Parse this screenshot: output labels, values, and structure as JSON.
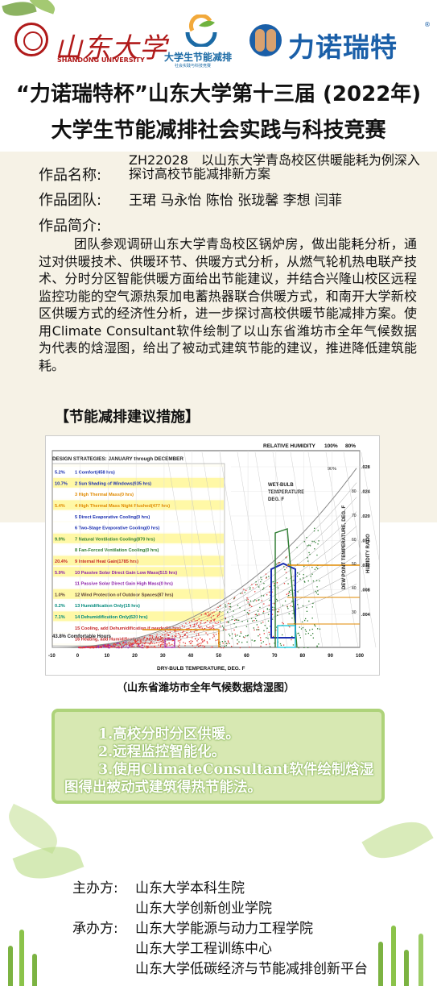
{
  "header": {
    "sdu_name_cn": "山东大学",
    "sdu_name_en": "SHANDONG UNIVERSITY",
    "eco_title": "大学生节能减排",
    "eco_subtitle": "社会实践与科技竞赛",
    "sponsor_name": "力诺瑞特",
    "sponsor_reg_mark": "®"
  },
  "title": {
    "line1": "“力诺瑞特杯”山东大学第十三届 (2022年)",
    "line2": "大学生节能减排社会实践与科技竞赛"
  },
  "project": {
    "name_label": "作品名称:",
    "name_value": "ZH22028　以山东大学青岛校区供暖能耗为例深入探讨高校节能减排新方案",
    "team_label": "作品团队:",
    "team_value": "王珺 马永怡 陈怡 张珑馨 李想 闫菲",
    "intro_label": "作品简介:",
    "intro_text": "团队参观调研山东大学青岛校区锅炉房，做出能耗分析，通过对供暖技术、供暖环节、供暖方式分析，从燃气轮机热电联产技术、分时分区智能供暖方面给出节能建议，并结合兴隆山校区远程监控功能的空气源热泵加电蓄热器联合供暖方式，和南开大学新校区供暖方式的经济性分析，进一步探讨高校供暖节能减排方案。使用Climate Consultant软件绘制了以山东省潍坊市全年气候数据为代表的焓湿图，给出了被动式建筑节能的建议，推进降低建筑能耗。",
    "measures_heading": "【节能减排建议措施】"
  },
  "chart": {
    "strategies_title": "DESIGN STRATEGIES:  JANUARY through DECEMBER",
    "rh_label": "RELATIVE HUMIDITY",
    "rh_100": "100%",
    "rh_80": "80%",
    "rh_90": "90%",
    "wet_bulb": [
      "WET-BULB",
      "TEMPERATURE",
      "DEG. F"
    ],
    "dew_label": "DEW POINT TEMPERATURE, DEG. F",
    "hr_label": "HUMIDITY RATIO",
    "x_axis_label": "DRY-BULB TEMPERATURE, DEG. F",
    "x_ticks": [
      "-10",
      "0",
      "10",
      "20",
      "30",
      "40",
      "50",
      "60",
      "70",
      "80",
      "90",
      "100"
    ],
    "right_ticks": [
      ".028",
      ".024",
      ".020",
      ".016",
      ".012",
      ".008",
      ".004"
    ],
    "dew_ticks": [
      "80",
      "70",
      "60",
      "50",
      "40",
      "30"
    ],
    "comfortable": "43.8%  Comfortable Hours",
    "strategies": [
      {
        "pct": "5.2%",
        "text": "1  Comfort(458 hrs)",
        "color": "#1a2fb0",
        "bg": "#ffffff"
      },
      {
        "pct": "10.7%",
        "text": "2  Sun Shading of Windows(935 hrs)",
        "color": "#1a2fb0",
        "bg": "#fff8a6"
      },
      {
        "pct": "",
        "text": "3  High Thermal Mass(0 hrs)",
        "color": "#e08a00",
        "bg": "#ffffff"
      },
      {
        "pct": "5.4%",
        "text": "4  High Thermal Mass Night Flushed(477 hrs)",
        "color": "#e08a00",
        "bg": "#fff8a6"
      },
      {
        "pct": "",
        "text": "5  Direct Evaporative Cooling(0 hrs)",
        "color": "#1a2fb0",
        "bg": "#ffffff"
      },
      {
        "pct": "",
        "text": "6  Two-Stage Evaporative Cooling(0 hrs)",
        "color": "#1a2fb0",
        "bg": "#ffffff"
      },
      {
        "pct": "9.9%",
        "text": "7  Natural Ventilation Cooling(870 hrs)",
        "color": "#2e7d32",
        "bg": "#fff8a6"
      },
      {
        "pct": "",
        "text": "8  Fan-Forced Ventilation Cooling(0 hrs)",
        "color": "#2e7d32",
        "bg": "#ffffff"
      },
      {
        "pct": "20.4%",
        "text": "9  Internal Heat Gain(1785 hrs)",
        "color": "#c62828",
        "bg": "#fff8a6"
      },
      {
        "pct": "5.9%",
        "text": "10 Passive Solar Direct Gain Low Mass(515 hrs)",
        "color": "#8e24aa",
        "bg": "#fff8a6"
      },
      {
        "pct": "",
        "text": "11 Passive Solar Direct Gain High Mass(0 hrs)",
        "color": "#8e24aa",
        "bg": "#ffffff"
      },
      {
        "pct": "1.0%",
        "text": "12 Wind Protection of Outdoor Spaces(87 hrs)",
        "color": "#5d4037",
        "bg": "#fff8a6"
      },
      {
        "pct": "0.2%",
        "text": "13 Humidification Only(15 hrs)",
        "color": "#00897b",
        "bg": "#ffffff"
      },
      {
        "pct": "7.1%",
        "text": "14 Dehumidification Only(620 hrs)",
        "color": "#00897b",
        "bg": "#fff8a6"
      },
      {
        "pct": "",
        "text": "15 Cooling, add Dehumidification if needed(0 hrs)",
        "color": "#c62828",
        "bg": "#ffffff"
      },
      {
        "pct": "",
        "text": "16 Heating, add Humidification if needed(0 hrs)",
        "color": "#c62828",
        "bg": "#ffffff"
      }
    ]
  },
  "caption": "（山东省潍坊市全年气候数据焓湿图）",
  "suggestions": {
    "item1": "1.高校分时分区供暖。",
    "item2": "2.远程监控智能化。",
    "item3": "3.使用ClimateConsultant软件绘制焓湿图得出被动式建筑得热节能法。"
  },
  "organizers": {
    "host_label": "主办方:",
    "host_1": "山东大学本科生院",
    "host_2": "山东大学创新创业学院",
    "co_label": "承办方:",
    "co_1": "山东大学能源与动力工程学院",
    "co_2": "山东大学工程训练中心",
    "co_3": "山东大学低碳经济与节能减排创新平台"
  },
  "colors": {
    "brand_red": "#b01a1a",
    "brand_blue": "#1a5fa8",
    "panel_beige": "#f6f2e6",
    "panel_green": "#d7e8b2"
  }
}
